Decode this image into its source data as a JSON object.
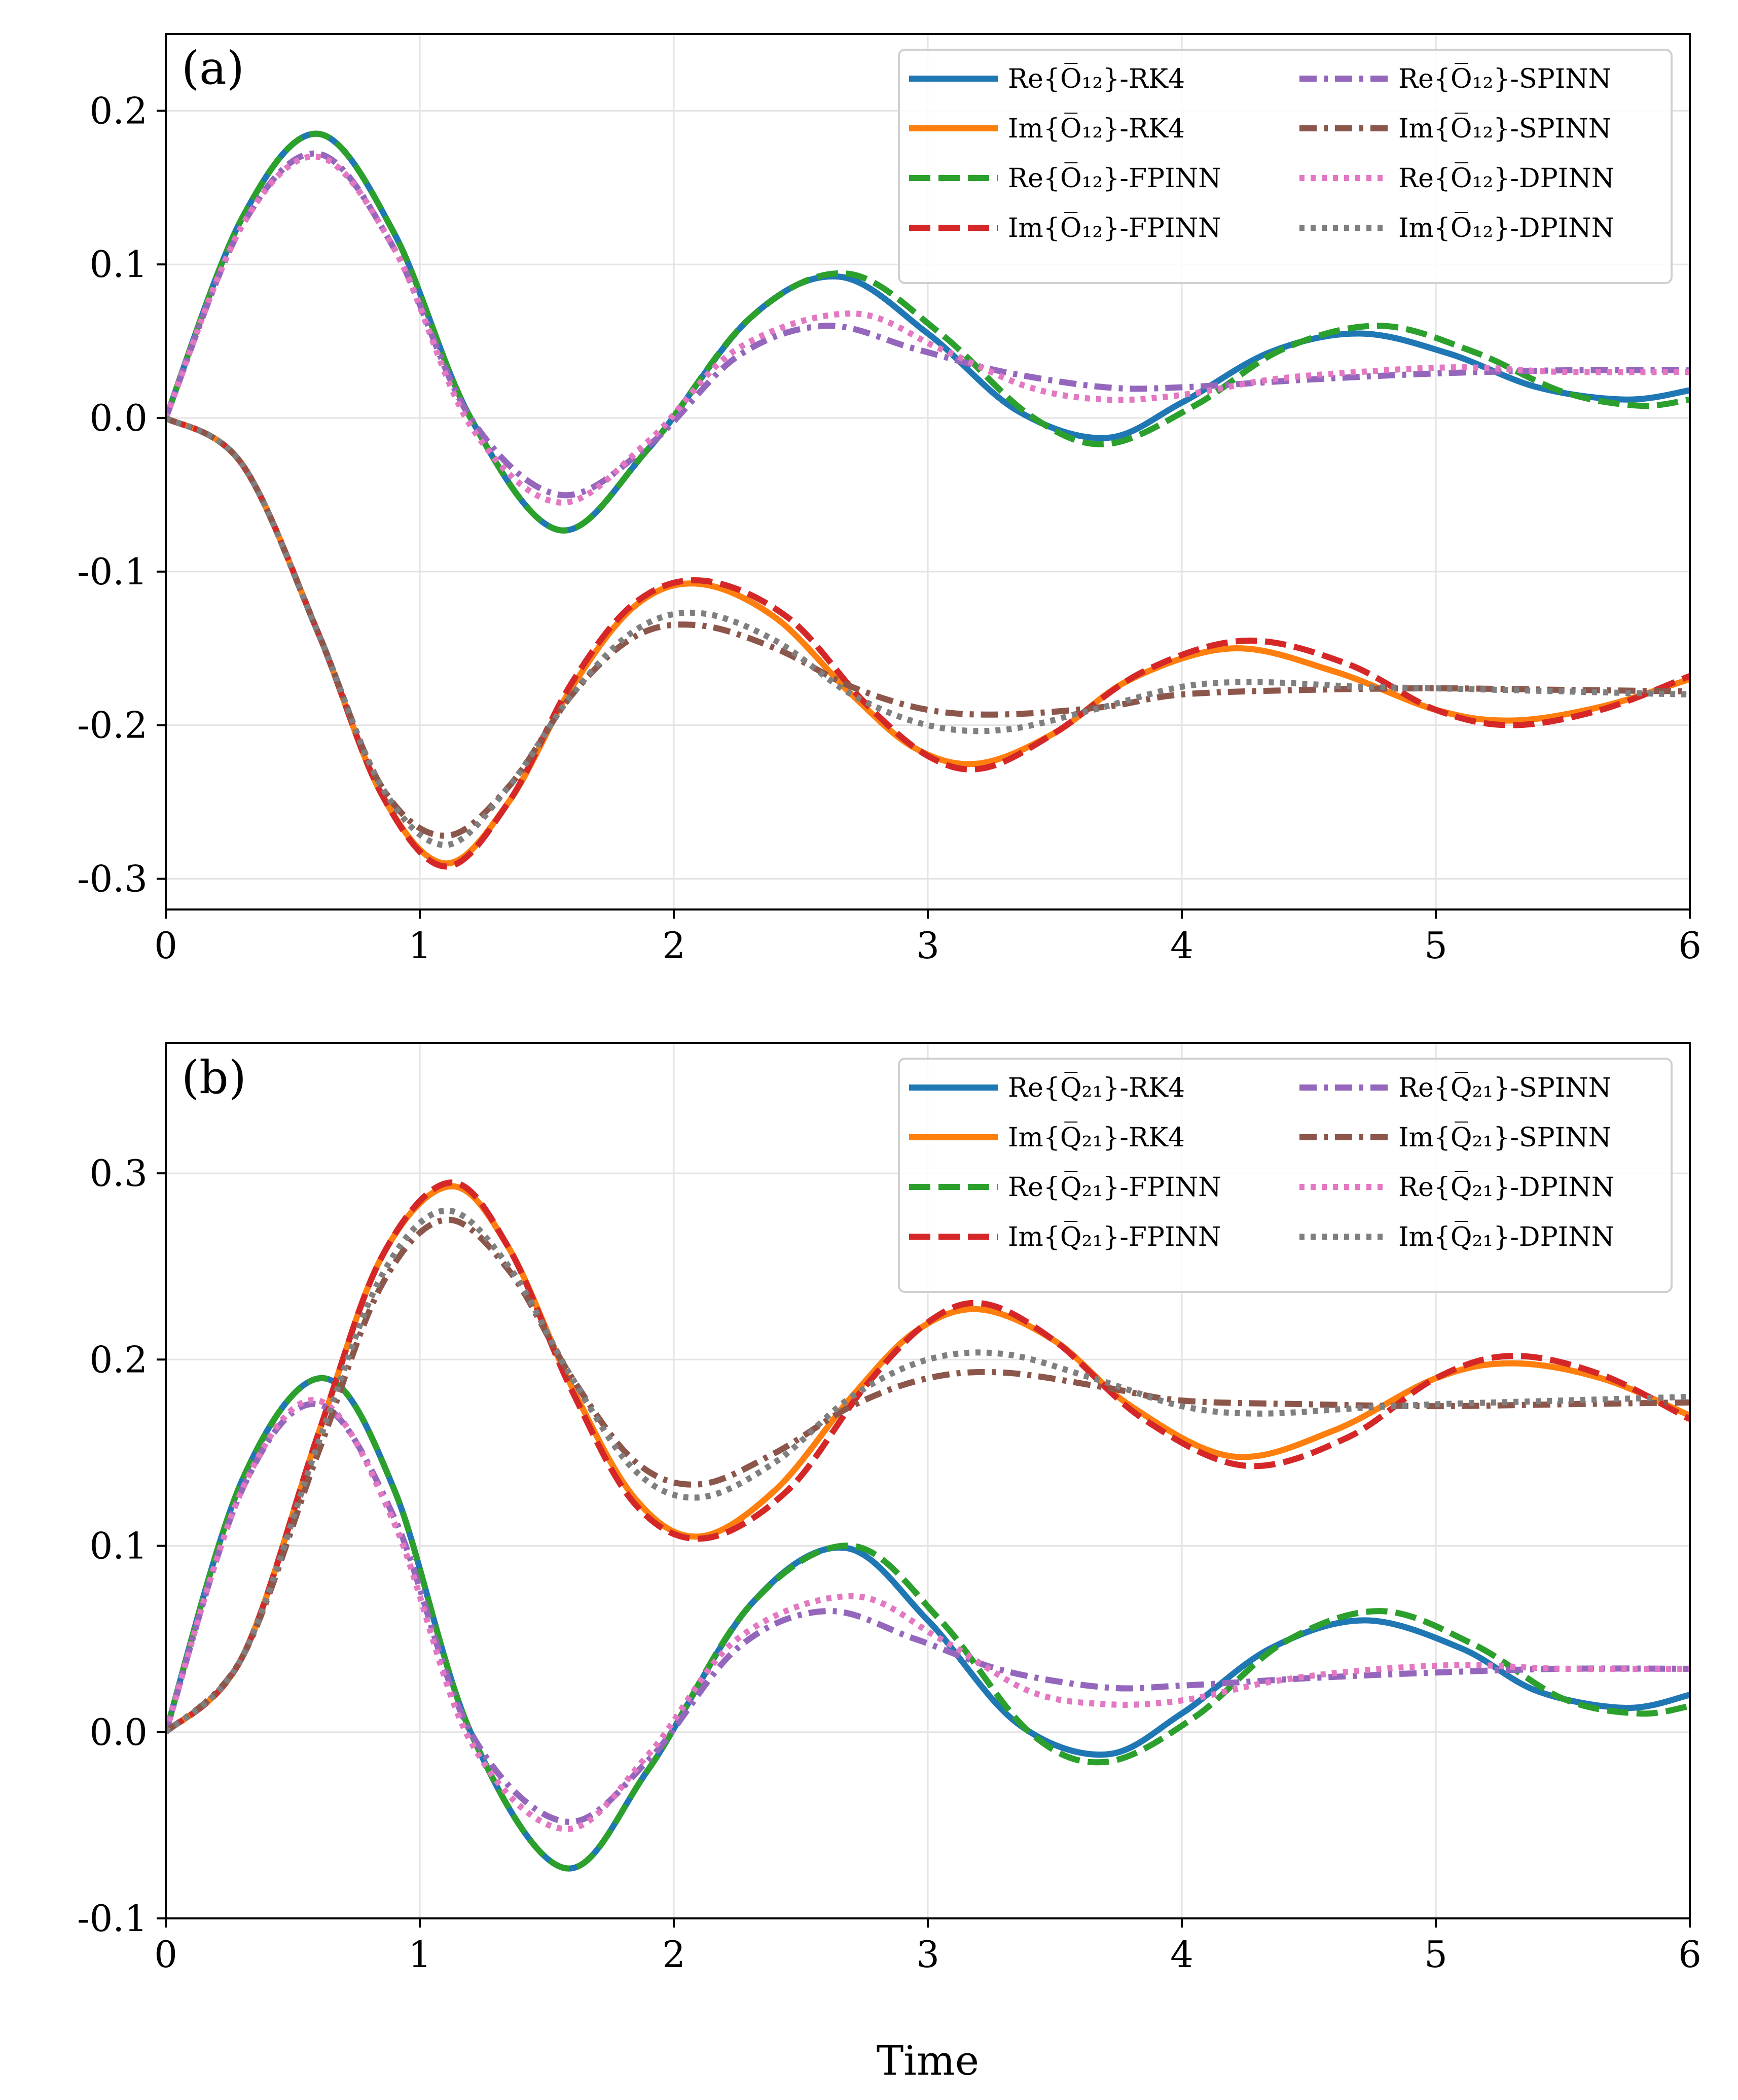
{
  "figure": {
    "xlabel": "Time"
  },
  "legend_suffixes": [
    "RK4",
    "RK4",
    "FPINN",
    "FPINN",
    "SPINN",
    "SPINN",
    "DPINN",
    "DPINN"
  ],
  "styles": [
    {
      "key": "re_rk4",
      "color": "#1f77b4",
      "dash": "solid"
    },
    {
      "key": "im_rk4",
      "color": "#ff7f0e",
      "dash": "solid"
    },
    {
      "key": "re_fpinn",
      "color": "#2ca02c",
      "dash": "dashed"
    },
    {
      "key": "im_fpinn",
      "color": "#d62728",
      "dash": "dashed"
    },
    {
      "key": "re_spinn",
      "color": "#9467bd",
      "dash": "dashdot"
    },
    {
      "key": "im_spinn",
      "color": "#8c564b",
      "dash": "dashdot"
    },
    {
      "key": "re_dpinn",
      "color": "#e377c2",
      "dash": "dotted"
    },
    {
      "key": "im_dpinn",
      "color": "#7f7f7f",
      "dash": "dotted"
    }
  ],
  "chart_data": [
    {
      "type": "line",
      "panel_label": "(a)",
      "operator": {
        "symbol": "O",
        "subscript": "12"
      },
      "legend_labels": [
        "Re{O̅₁₂}-RK4",
        "Im{O̅₁₂}-RK4",
        "Re{O̅₁₂}-FPINN",
        "Im{O̅₁₂}-FPINN",
        "Re{O̅₁₂}-SPINN",
        "Im{O̅₁₂}-SPINN",
        "Re{O̅₁₂}-DPINN",
        "Im{O̅₁₂}-DPINN"
      ],
      "xlabel": "",
      "xlim": [
        0,
        6
      ],
      "ylim": [
        -0.32,
        0.25
      ],
      "xticks": [
        0,
        1,
        2,
        3,
        4,
        5,
        6
      ],
      "xtick_labels": [
        "0",
        "1",
        "2",
        "3",
        "4",
        "5",
        "6"
      ],
      "yticks": [
        -0.3,
        -0.2,
        -0.1,
        0.0,
        0.1,
        0.2
      ],
      "ytick_labels": [
        "-0.3",
        "-0.2",
        "-0.1",
        "0.0",
        "0.1",
        "0.2"
      ],
      "grid": true,
      "legend_position": "top-right",
      "legend_columns": 2,
      "series": [
        {
          "key": "re_rk4",
          "x": [
            0,
            0.3,
            0.6,
            0.9,
            1.2,
            1.55,
            1.9,
            2.3,
            2.65,
            3.0,
            3.35,
            3.7,
            4.0,
            4.35,
            4.7,
            5.05,
            5.4,
            5.75,
            6.0
          ],
          "y": [
            0,
            0.13,
            0.185,
            0.12,
            0.0,
            -0.073,
            -0.02,
            0.065,
            0.092,
            0.055,
            0.005,
            -0.013,
            0.01,
            0.043,
            0.055,
            0.042,
            0.02,
            0.012,
            0.018
          ]
        },
        {
          "key": "im_rk4",
          "x": [
            0,
            0.3,
            0.6,
            0.85,
            1.1,
            1.35,
            1.6,
            1.85,
            2.1,
            2.4,
            2.7,
            2.95,
            3.2,
            3.5,
            3.8,
            4.2,
            4.6,
            5.0,
            5.3,
            5.65,
            6.0
          ],
          "y": [
            0,
            -0.03,
            -0.14,
            -0.245,
            -0.29,
            -0.25,
            -0.175,
            -0.122,
            -0.108,
            -0.13,
            -0.18,
            -0.215,
            -0.225,
            -0.205,
            -0.17,
            -0.15,
            -0.165,
            -0.19,
            -0.197,
            -0.188,
            -0.17
          ]
        },
        {
          "key": "re_fpinn",
          "x": [
            0,
            0.3,
            0.6,
            0.9,
            1.2,
            1.55,
            1.9,
            2.3,
            2.68,
            3.05,
            3.4,
            3.7,
            4.05,
            4.4,
            4.78,
            5.15,
            5.5,
            5.8,
            6.0
          ],
          "y": [
            0,
            0.13,
            0.185,
            0.12,
            0.0,
            -0.073,
            -0.02,
            0.065,
            0.094,
            0.055,
            0.002,
            -0.017,
            0.008,
            0.045,
            0.06,
            0.043,
            0.017,
            0.008,
            0.012
          ]
        },
        {
          "key": "im_fpinn",
          "x": [
            0,
            0.3,
            0.6,
            0.85,
            1.1,
            1.35,
            1.6,
            1.85,
            2.12,
            2.45,
            2.75,
            3.0,
            3.22,
            3.5,
            3.85,
            4.25,
            4.65,
            5.0,
            5.3,
            5.65,
            6.0
          ],
          "y": [
            0,
            -0.03,
            -0.14,
            -0.245,
            -0.292,
            -0.25,
            -0.172,
            -0.12,
            -0.106,
            -0.13,
            -0.185,
            -0.22,
            -0.228,
            -0.205,
            -0.165,
            -0.145,
            -0.16,
            -0.19,
            -0.2,
            -0.19,
            -0.168
          ]
        },
        {
          "key": "re_spinn",
          "x": [
            0,
            0.3,
            0.6,
            0.9,
            1.2,
            1.55,
            1.9,
            2.25,
            2.6,
            2.95,
            3.3,
            3.7,
            4.0,
            4.5,
            5.0,
            5.5,
            6.0
          ],
          "y": [
            0,
            0.125,
            0.172,
            0.11,
            0.0,
            -0.05,
            -0.018,
            0.04,
            0.06,
            0.045,
            0.03,
            0.02,
            0.02,
            0.025,
            0.029,
            0.031,
            0.031
          ]
        },
        {
          "key": "im_spinn",
          "x": [
            0,
            0.3,
            0.6,
            0.85,
            1.1,
            1.35,
            1.6,
            1.85,
            2.1,
            2.4,
            2.7,
            3.0,
            3.3,
            3.7,
            4.0,
            4.5,
            5.0,
            5.5,
            6.0
          ],
          "y": [
            0,
            -0.03,
            -0.14,
            -0.24,
            -0.272,
            -0.24,
            -0.18,
            -0.142,
            -0.135,
            -0.15,
            -0.175,
            -0.19,
            -0.193,
            -0.188,
            -0.18,
            -0.177,
            -0.176,
            -0.177,
            -0.178
          ]
        },
        {
          "key": "re_dpinn",
          "x": [
            0,
            0.3,
            0.6,
            0.9,
            1.2,
            1.55,
            1.9,
            2.25,
            2.7,
            3.05,
            3.4,
            3.7,
            4.0,
            4.35,
            4.7,
            5.1,
            5.5,
            6.0
          ],
          "y": [
            0,
            0.125,
            0.17,
            0.11,
            -0.005,
            -0.055,
            -0.015,
            0.045,
            0.068,
            0.045,
            0.02,
            0.012,
            0.015,
            0.025,
            0.03,
            0.033,
            0.03,
            0.03
          ]
        },
        {
          "key": "im_dpinn",
          "x": [
            0,
            0.3,
            0.6,
            0.85,
            1.1,
            1.35,
            1.6,
            1.85,
            2.1,
            2.4,
            2.7,
            3.0,
            3.3,
            3.65,
            4.0,
            4.3,
            4.7,
            5.0,
            5.5,
            6.0
          ],
          "y": [
            0,
            -0.03,
            -0.14,
            -0.24,
            -0.278,
            -0.24,
            -0.18,
            -0.138,
            -0.127,
            -0.145,
            -0.18,
            -0.2,
            -0.203,
            -0.19,
            -0.175,
            -0.172,
            -0.175,
            -0.176,
            -0.178,
            -0.18
          ]
        }
      ]
    },
    {
      "type": "line",
      "panel_label": "(b)",
      "operator": {
        "symbol": "Q",
        "subscript": "21"
      },
      "legend_labels": [
        "Re{Q̅₂₁}-RK4",
        "Im{Q̅₂₁}-RK4",
        "Re{Q̅₂₁}-FPINN",
        "Im{Q̅₂₁}-FPINN",
        "Re{Q̅₂₁}-SPINN",
        "Im{Q̅₂₁}-SPINN",
        "Re{Q̅₂₁}-DPINN",
        "Im{Q̅₂₁}-DPINN"
      ],
      "xlabel": "Time",
      "xlim": [
        0,
        6
      ],
      "ylim": [
        -0.1,
        0.37
      ],
      "xticks": [
        0,
        1,
        2,
        3,
        4,
        5,
        6
      ],
      "xtick_labels": [
        "0",
        "1",
        "2",
        "3",
        "4",
        "5",
        "6"
      ],
      "yticks": [
        -0.1,
        0.0,
        0.1,
        0.2,
        0.3
      ],
      "ytick_labels": [
        "-0.1",
        "0.0",
        "0.1",
        "0.2",
        "0.3"
      ],
      "grid": true,
      "legend_position": "top-right",
      "legend_columns": 2,
      "series": [
        {
          "key": "re_rk4",
          "x": [
            0,
            0.3,
            0.62,
            0.9,
            1.2,
            1.57,
            1.9,
            2.3,
            2.67,
            3.0,
            3.35,
            3.7,
            4.0,
            4.35,
            4.72,
            5.1,
            5.4,
            5.75,
            6.0
          ],
          "y": [
            0,
            0.135,
            0.19,
            0.13,
            0.0,
            -0.073,
            -0.02,
            0.068,
            0.099,
            0.06,
            0.005,
            -0.012,
            0.01,
            0.045,
            0.06,
            0.045,
            0.022,
            0.013,
            0.02
          ]
        },
        {
          "key": "im_rk4",
          "x": [
            0,
            0.3,
            0.6,
            0.85,
            1.12,
            1.35,
            1.6,
            1.85,
            2.1,
            2.4,
            2.7,
            2.95,
            3.2,
            3.5,
            3.8,
            4.2,
            4.6,
            5.0,
            5.3,
            5.65,
            6.0
          ],
          "y": [
            0,
            0.04,
            0.16,
            0.255,
            0.293,
            0.26,
            0.185,
            0.125,
            0.105,
            0.13,
            0.18,
            0.215,
            0.227,
            0.21,
            0.175,
            0.148,
            0.162,
            0.19,
            0.198,
            0.19,
            0.17
          ]
        },
        {
          "key": "re_fpinn",
          "x": [
            0,
            0.3,
            0.62,
            0.9,
            1.2,
            1.57,
            1.9,
            2.3,
            2.7,
            3.05,
            3.4,
            3.7,
            4.05,
            4.4,
            4.78,
            5.15,
            5.5,
            5.8,
            6.0
          ],
          "y": [
            0,
            0.135,
            0.19,
            0.13,
            0.0,
            -0.073,
            -0.02,
            0.068,
            0.1,
            0.06,
            0.0,
            -0.016,
            0.008,
            0.048,
            0.065,
            0.047,
            0.018,
            0.01,
            0.014
          ]
        },
        {
          "key": "im_fpinn",
          "x": [
            0,
            0.3,
            0.6,
            0.85,
            1.12,
            1.35,
            1.6,
            1.85,
            2.12,
            2.45,
            2.75,
            3.0,
            3.22,
            3.5,
            3.85,
            4.25,
            4.65,
            5.0,
            5.3,
            5.65,
            6.0
          ],
          "y": [
            0,
            0.04,
            0.16,
            0.255,
            0.295,
            0.26,
            0.183,
            0.122,
            0.104,
            0.13,
            0.185,
            0.22,
            0.23,
            0.21,
            0.168,
            0.143,
            0.158,
            0.19,
            0.202,
            0.192,
            0.168
          ]
        },
        {
          "key": "re_spinn",
          "x": [
            0,
            0.3,
            0.6,
            0.9,
            1.2,
            1.57,
            1.9,
            2.25,
            2.6,
            2.95,
            3.3,
            3.7,
            4.0,
            4.5,
            5.0,
            5.5,
            6.0
          ],
          "y": [
            0,
            0.13,
            0.176,
            0.115,
            0.0,
            -0.048,
            -0.015,
            0.045,
            0.065,
            0.05,
            0.033,
            0.024,
            0.025,
            0.029,
            0.032,
            0.034,
            0.034
          ]
        },
        {
          "key": "im_spinn",
          "x": [
            0,
            0.3,
            0.6,
            0.85,
            1.1,
            1.35,
            1.6,
            1.85,
            2.1,
            2.4,
            2.7,
            3.0,
            3.3,
            3.7,
            4.0,
            4.5,
            5.0,
            5.5,
            6.0
          ],
          "y": [
            0,
            0.04,
            0.15,
            0.24,
            0.275,
            0.248,
            0.19,
            0.145,
            0.133,
            0.15,
            0.175,
            0.19,
            0.193,
            0.185,
            0.178,
            0.176,
            0.175,
            0.176,
            0.177
          ]
        },
        {
          "key": "re_dpinn",
          "x": [
            0,
            0.3,
            0.6,
            0.9,
            1.2,
            1.57,
            1.9,
            2.25,
            2.7,
            3.05,
            3.4,
            3.7,
            4.0,
            4.35,
            4.7,
            5.1,
            5.5,
            6.0
          ],
          "y": [
            0,
            0.13,
            0.178,
            0.112,
            -0.005,
            -0.052,
            -0.012,
            0.05,
            0.073,
            0.05,
            0.022,
            0.015,
            0.017,
            0.027,
            0.033,
            0.036,
            0.034,
            0.034
          ]
        },
        {
          "key": "im_dpinn",
          "x": [
            0,
            0.3,
            0.6,
            0.85,
            1.1,
            1.35,
            1.6,
            1.85,
            2.1,
            2.4,
            2.7,
            3.0,
            3.3,
            3.65,
            4.0,
            4.3,
            4.7,
            5.0,
            5.5,
            6.0
          ],
          "y": [
            0,
            0.04,
            0.155,
            0.245,
            0.28,
            0.25,
            0.19,
            0.14,
            0.126,
            0.145,
            0.18,
            0.2,
            0.203,
            0.19,
            0.175,
            0.171,
            0.174,
            0.176,
            0.178,
            0.18
          ]
        }
      ]
    }
  ]
}
